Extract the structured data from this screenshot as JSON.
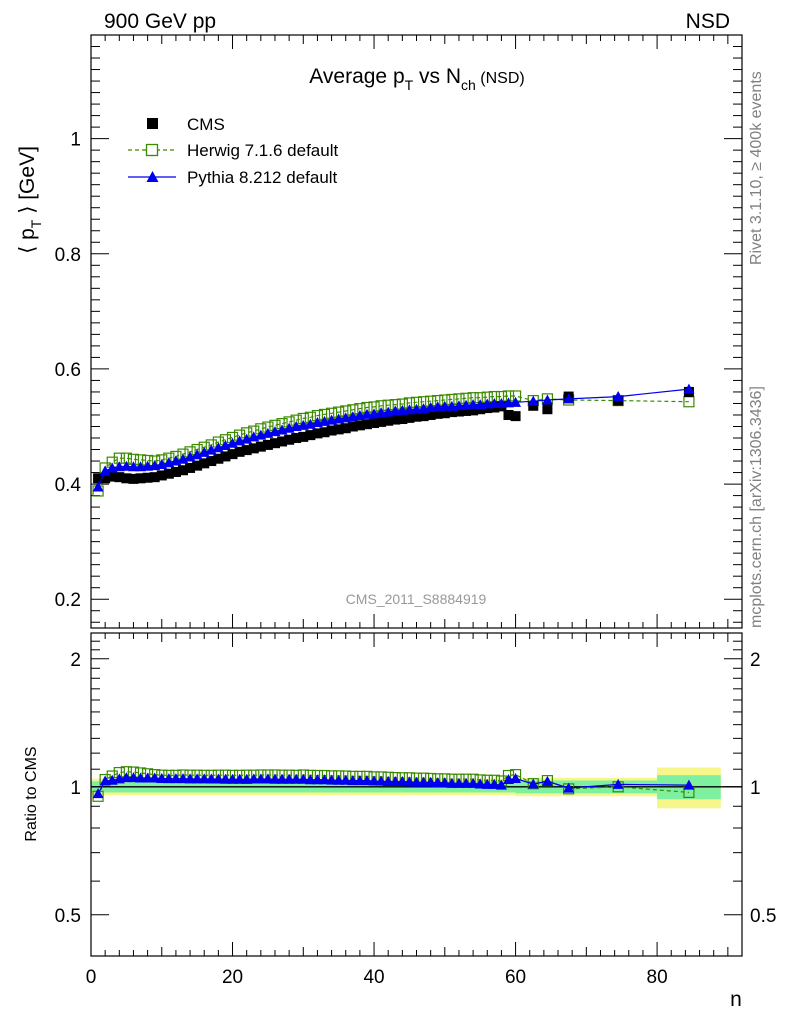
{
  "header": {
    "left": "900 GeV pp",
    "right": "NSD"
  },
  "side_labels": {
    "top": "Rivet 3.1.10, ≥ 400k events",
    "bottom": "mcplots.cern.ch [arXiv:1306.3436]"
  },
  "colors": {
    "cms": "#000000",
    "herwig": "#3a8a00",
    "pythia": "#0000ee",
    "band_inner": "#7ef0a0",
    "band_outer": "#f6f68a",
    "watermark": "#999999"
  },
  "chart_data": [
    {
      "type": "scatter",
      "title": {
        "main": "Average p",
        "sub1": "T",
        "mid": " vs N",
        "sub2": "ch",
        "suffix": " (NSD)"
      },
      "watermark": "CMS_2011_S8884919",
      "ylabel": {
        "pre": "⟨ p",
        "sub": "T",
        "post": " ⟩ [GeV]"
      },
      "xlim": [
        0,
        92
      ],
      "ylim": [
        0.15,
        1.18
      ],
      "yticks": [
        {
          "value": 0.2,
          "label": "0.2"
        },
        {
          "value": 0.4,
          "label": "0.4"
        },
        {
          "value": 0.6,
          "label": "0.6"
        },
        {
          "value": 0.8,
          "label": "0.8"
        },
        {
          "value": 1.0,
          "label": "1"
        }
      ],
      "legend": [
        {
          "key": "cms",
          "label": "CMS"
        },
        {
          "key": "herwig",
          "label": "Herwig 7.1.6 default"
        },
        {
          "key": "pythia",
          "label": "Pythia 8.212 default"
        }
      ],
      "series": [
        {
          "name": "CMS",
          "key": "cms",
          "x": [
            1,
            2,
            3,
            4,
            5,
            6,
            7,
            8,
            9,
            10,
            11,
            12,
            13,
            14,
            15,
            16,
            17,
            18,
            19,
            20,
            21,
            22,
            23,
            24,
            25,
            26,
            27,
            28,
            29,
            30,
            31,
            32,
            33,
            34,
            35,
            36,
            37,
            38,
            39,
            40,
            41,
            42,
            43,
            44,
            45,
            46,
            47,
            48,
            49,
            50,
            51,
            52,
            53,
            54,
            55,
            56,
            57,
            58,
            59,
            60,
            62.5,
            64.5,
            67.5,
            74.5,
            84.5
          ],
          "y": [
            0.41,
            0.41,
            0.413,
            0.412,
            0.41,
            0.409,
            0.41,
            0.411,
            0.412,
            0.415,
            0.418,
            0.421,
            0.424,
            0.428,
            0.432,
            0.436,
            0.44,
            0.444,
            0.448,
            0.452,
            0.456,
            0.459,
            0.462,
            0.465,
            0.468,
            0.471,
            0.474,
            0.477,
            0.48,
            0.482,
            0.485,
            0.488,
            0.49,
            0.493,
            0.495,
            0.497,
            0.5,
            0.502,
            0.504,
            0.506,
            0.508,
            0.51,
            0.512,
            0.513,
            0.515,
            0.517,
            0.518,
            0.52,
            0.522,
            0.523,
            0.525,
            0.526,
            0.527,
            0.528,
            0.53,
            0.532,
            0.533,
            0.535,
            0.52,
            0.518,
            0.536,
            0.53,
            0.552,
            0.545,
            0.56
          ]
        },
        {
          "name": "Herwig 7.1.6 default",
          "key": "herwig",
          "x": [
            1,
            2,
            3,
            4,
            5,
            6,
            7,
            8,
            9,
            10,
            11,
            12,
            13,
            14,
            15,
            16,
            17,
            18,
            19,
            20,
            21,
            22,
            23,
            24,
            25,
            26,
            27,
            28,
            29,
            30,
            31,
            32,
            33,
            34,
            35,
            36,
            37,
            38,
            39,
            40,
            41,
            42,
            43,
            44,
            45,
            46,
            47,
            48,
            49,
            50,
            51,
            52,
            53,
            54,
            55,
            56,
            57,
            58,
            59,
            60,
            62.5,
            64.5,
            67.5,
            74.5,
            84.5
          ],
          "y": [
            0.388,
            0.428,
            0.438,
            0.445,
            0.445,
            0.443,
            0.442,
            0.441,
            0.44,
            0.442,
            0.445,
            0.448,
            0.452,
            0.456,
            0.46,
            0.464,
            0.468,
            0.473,
            0.477,
            0.481,
            0.485,
            0.489,
            0.492,
            0.496,
            0.499,
            0.502,
            0.505,
            0.508,
            0.511,
            0.514,
            0.516,
            0.519,
            0.521,
            0.523,
            0.525,
            0.527,
            0.529,
            0.531,
            0.533,
            0.534,
            0.536,
            0.537,
            0.538,
            0.539,
            0.541,
            0.542,
            0.543,
            0.544,
            0.545,
            0.546,
            0.547,
            0.548,
            0.549,
            0.55,
            0.55,
            0.551,
            0.552,
            0.552,
            0.553,
            0.553,
            0.545,
            0.548,
            0.546,
            0.545,
            0.543
          ]
        },
        {
          "name": "Pythia 8.212 default",
          "key": "pythia",
          "x": [
            1,
            2,
            3,
            4,
            5,
            6,
            7,
            8,
            9,
            10,
            11,
            12,
            13,
            14,
            15,
            16,
            17,
            18,
            19,
            20,
            21,
            22,
            23,
            24,
            25,
            26,
            27,
            28,
            29,
            30,
            31,
            32,
            33,
            34,
            35,
            36,
            37,
            38,
            39,
            40,
            41,
            42,
            43,
            44,
            45,
            46,
            47,
            48,
            49,
            50,
            51,
            52,
            53,
            54,
            55,
            56,
            57,
            58,
            59,
            60,
            62.5,
            64.5,
            67.5,
            74.5,
            84.5
          ],
          "y": [
            0.395,
            0.423,
            0.428,
            0.43,
            0.431,
            0.43,
            0.43,
            0.431,
            0.432,
            0.434,
            0.437,
            0.44,
            0.443,
            0.447,
            0.451,
            0.455,
            0.459,
            0.463,
            0.467,
            0.471,
            0.475,
            0.478,
            0.482,
            0.485,
            0.488,
            0.491,
            0.494,
            0.497,
            0.5,
            0.502,
            0.504,
            0.507,
            0.509,
            0.511,
            0.513,
            0.515,
            0.517,
            0.519,
            0.521,
            0.522,
            0.524,
            0.525,
            0.527,
            0.528,
            0.529,
            0.53,
            0.531,
            0.533,
            0.534,
            0.535,
            0.535,
            0.536,
            0.537,
            0.538,
            0.538,
            0.539,
            0.54,
            0.54,
            0.541,
            0.542,
            0.544,
            0.546,
            0.548,
            0.552,
            0.565
          ]
        }
      ]
    },
    {
      "type": "line",
      "ylabel": "Ratio to CMS",
      "xlabel": "n",
      "xlim": [
        0,
        92
      ],
      "xticks": [
        {
          "value": 0,
          "label": "0"
        },
        {
          "value": 20,
          "label": "20"
        },
        {
          "value": 40,
          "label": "40"
        },
        {
          "value": 60,
          "label": "60"
        },
        {
          "value": 80,
          "label": "80"
        }
      ],
      "ylim": [
        0.4,
        2.3
      ],
      "log_y": true,
      "yticks": [
        {
          "value": 0.5,
          "label": "0.5"
        },
        {
          "value": 1,
          "label": "1"
        },
        {
          "value": 2,
          "label": "2"
        }
      ],
      "uncertainty_bands": [
        {
          "x0": 0,
          "x1": 60,
          "inner": 0.03,
          "outer": 0.045
        },
        {
          "x0": 60,
          "x1": 80,
          "inner": 0.035,
          "outer": 0.05
        },
        {
          "x0": 80,
          "x1": 89,
          "inner": 0.065,
          "outer": 0.11
        }
      ],
      "series": [
        {
          "name": "Herwig 7.1.6 default",
          "key": "herwig",
          "x": [
            1,
            2,
            3,
            4,
            5,
            6,
            7,
            8,
            9,
            10,
            11,
            12,
            13,
            14,
            15,
            16,
            17,
            18,
            19,
            20,
            21,
            22,
            23,
            24,
            25,
            26,
            27,
            28,
            29,
            30,
            31,
            32,
            33,
            34,
            35,
            36,
            37,
            38,
            39,
            40,
            41,
            42,
            43,
            44,
            45,
            46,
            47,
            48,
            49,
            50,
            51,
            52,
            53,
            54,
            55,
            56,
            57,
            58,
            59,
            60,
            62.5,
            64.5,
            67.5,
            74.5,
            84.5
          ],
          "y": [
            0.95,
            1.04,
            1.06,
            1.08,
            1.085,
            1.083,
            1.078,
            1.073,
            1.068,
            1.065,
            1.064,
            1.064,
            1.066,
            1.065,
            1.065,
            1.064,
            1.064,
            1.065,
            1.065,
            1.064,
            1.064,
            1.065,
            1.065,
            1.066,
            1.066,
            1.066,
            1.065,
            1.065,
            1.064,
            1.066,
            1.064,
            1.063,
            1.063,
            1.061,
            1.061,
            1.06,
            1.058,
            1.058,
            1.058,
            1.055,
            1.055,
            1.053,
            1.051,
            1.05,
            1.05,
            1.048,
            1.048,
            1.046,
            1.044,
            1.044,
            1.042,
            1.042,
            1.042,
            1.042,
            1.038,
            1.036,
            1.036,
            1.032,
            1.063,
            1.068,
            1.017,
            1.034,
            0.989,
            1.0,
            0.97
          ]
        },
        {
          "name": "Pythia 8.212 default",
          "key": "pythia",
          "x": [
            1,
            2,
            3,
            4,
            5,
            6,
            7,
            8,
            9,
            10,
            11,
            12,
            13,
            14,
            15,
            16,
            17,
            18,
            19,
            20,
            21,
            22,
            23,
            24,
            25,
            26,
            27,
            28,
            29,
            30,
            31,
            32,
            33,
            34,
            35,
            36,
            37,
            38,
            39,
            40,
            41,
            42,
            43,
            44,
            45,
            46,
            47,
            48,
            49,
            50,
            51,
            52,
            53,
            54,
            55,
            56,
            57,
            58,
            59,
            60,
            62.5,
            64.5,
            67.5,
            74.5,
            84.5
          ],
          "y": [
            0.964,
            1.032,
            1.036,
            1.044,
            1.051,
            1.051,
            1.049,
            1.049,
            1.049,
            1.046,
            1.045,
            1.045,
            1.045,
            1.044,
            1.044,
            1.044,
            1.043,
            1.043,
            1.042,
            1.042,
            1.042,
            1.041,
            1.043,
            1.043,
            1.043,
            1.042,
            1.042,
            1.042,
            1.042,
            1.042,
            1.039,
            1.039,
            1.039,
            1.037,
            1.036,
            1.036,
            1.034,
            1.034,
            1.034,
            1.032,
            1.031,
            1.029,
            1.029,
            1.029,
            1.027,
            1.025,
            1.025,
            1.025,
            1.023,
            1.023,
            1.019,
            1.019,
            1.019,
            1.019,
            1.015,
            1.013,
            1.013,
            1.009,
            1.04,
            1.046,
            1.015,
            1.03,
            0.993,
            1.013,
            1.009
          ]
        }
      ]
    }
  ]
}
